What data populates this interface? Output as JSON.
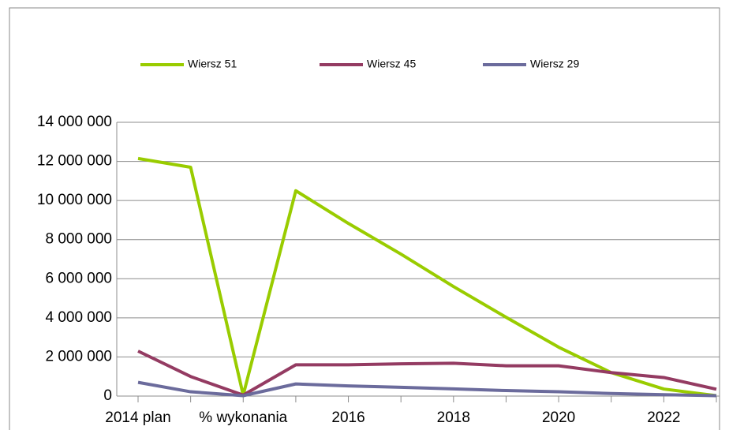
{
  "chart_data": {
    "type": "line",
    "categories": [
      "2014 plan",
      null,
      "% wykonania",
      null,
      "2016",
      null,
      "2018",
      null,
      "2020",
      null,
      "2022",
      null
    ],
    "series": [
      {
        "name": "Wiersz 51",
        "color": "#99cc00",
        "values": [
          12150000,
          11700000,
          50000,
          10500000,
          8830000,
          7260000,
          5600000,
          4030000,
          2500000,
          1200000,
          360000,
          20000
        ]
      },
      {
        "name": "Wiersz 45",
        "color": "#943b62",
        "values": [
          2300000,
          1000000,
          50000,
          1600000,
          1600000,
          1650000,
          1680000,
          1550000,
          1550000,
          1200000,
          950000,
          350000
        ]
      },
      {
        "name": "Wiersz 29",
        "color": "#6b6b9c",
        "values": [
          700000,
          220000,
          20000,
          620000,
          520000,
          450000,
          370000,
          280000,
          220000,
          130000,
          70000,
          20000
        ]
      }
    ],
    "ylim": [
      0,
      14000000
    ],
    "yticks": [
      0,
      {
        "value": 2000000,
        "label": "2 000 000"
      },
      {
        "value": 4000000,
        "label": "4 000 000"
      },
      {
        "value": 6000000,
        "label": "6 000 000"
      },
      {
        "value": 8000000,
        "label": "8 000 000"
      },
      {
        "value": 10000000,
        "label": "10 000 000"
      },
      {
        "value": 12000000,
        "label": "12 000 000"
      },
      {
        "value": 14000000,
        "label": "14 000 000"
      }
    ],
    "grid": true,
    "legend": "top"
  }
}
